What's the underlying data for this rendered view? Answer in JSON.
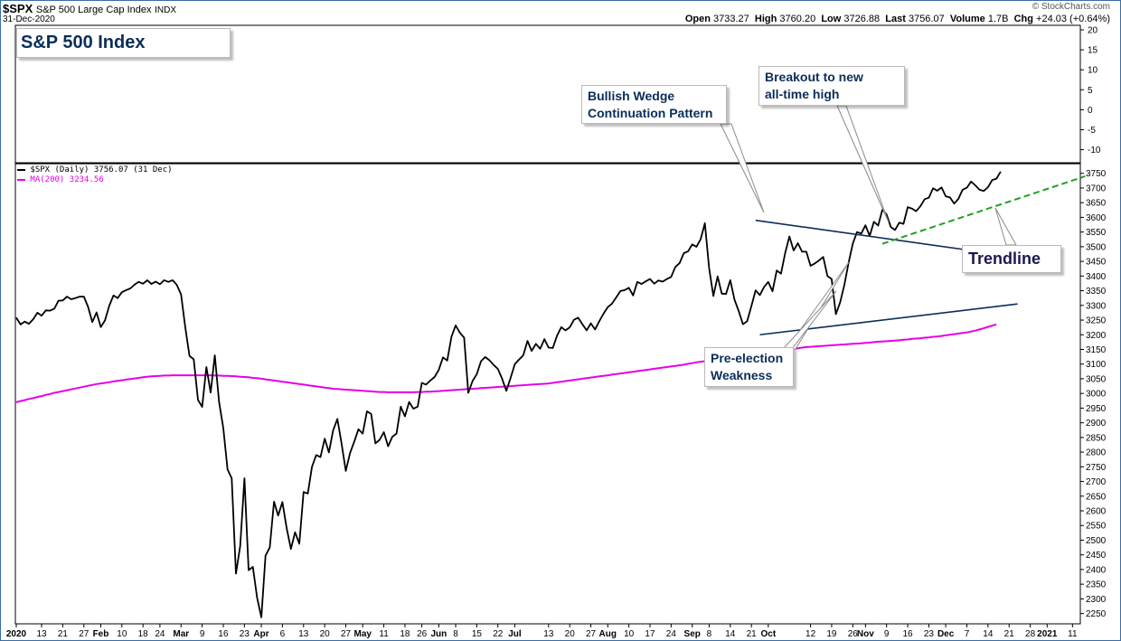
{
  "header": {
    "symbol": "$SPX",
    "name": "S&P 500 Large Cap Index",
    "exchange": "INDX",
    "date": "31-Dec-2020",
    "open_label": "Open",
    "open": "3733.27",
    "high_label": "High",
    "high": "3760.20",
    "low_label": "Low",
    "low": "3726.88",
    "last_label": "Last",
    "last": "3756.07",
    "volume_label": "Volume",
    "volume": "1.7B",
    "chg_label": "Chg",
    "chg": "+24.03 (+0.64%)",
    "credit": "© StockCharts.com"
  },
  "legend": {
    "price": "$SPX (Daily) 3756.07 (31 Dec)",
    "ma": "MA(200) 3234.56"
  },
  "callouts": {
    "title": "S&P 500 Index",
    "wedge_line1": "Bullish Wedge",
    "wedge_line2": "Continuation Pattern",
    "breakout_line1": "Breakout to new",
    "breakout_line2": "all-time high",
    "pre_line1": "Pre-election",
    "pre_line2": "Weakness",
    "trendline": "Trendline"
  },
  "colors": {
    "price": "#000000",
    "ma200": "#e600e6",
    "wedge_lines": "#0b2d5a",
    "trendline": "#22a022",
    "frame": "#3a6ea5",
    "callout_text": "#0b2d5a"
  },
  "chart_data": {
    "type": "line",
    "title": "S&P 500 Index",
    "upper_panel": {
      "y_ticks": [
        20,
        15,
        10,
        5,
        0,
        -5,
        -10
      ]
    },
    "y_ticks": [
      2250,
      2300,
      2350,
      2400,
      2450,
      2500,
      2550,
      2600,
      2650,
      2700,
      2750,
      2800,
      2850,
      2900,
      2950,
      3000,
      3050,
      3100,
      3150,
      3200,
      3250,
      3300,
      3350,
      3400,
      3450,
      3500,
      3550,
      3600,
      3650,
      3700,
      3750
    ],
    "ylim": [
      2218,
      3780
    ],
    "x_labels": [
      "2020",
      "13",
      "21",
      "27",
      "Feb",
      "10",
      "18",
      "24",
      "Mar",
      "9",
      "16",
      "23",
      "Apr",
      "6",
      "13",
      "20",
      "27",
      "May",
      "11",
      "18",
      "26",
      "Jun",
      "8",
      "15",
      "22",
      "Jul",
      "13",
      "20",
      "27",
      "Aug",
      "10",
      "17",
      "24",
      "Sep",
      "8",
      "14",
      "21",
      "Oct",
      "12",
      "19",
      "26",
      "Nov",
      "9",
      "16",
      "23",
      "Dec",
      "7",
      "14",
      "21",
      "28",
      "2021",
      "11"
    ],
    "x_label_idx": [
      0,
      6,
      11,
      16,
      20,
      25,
      30,
      34,
      39,
      44,
      49,
      54,
      58,
      63,
      68,
      73,
      78,
      82,
      87,
      92,
      96,
      100,
      104,
      109,
      114,
      118,
      126,
      131,
      136,
      140,
      145,
      150,
      155,
      160,
      164,
      169,
      174,
      178,
      188,
      193,
      198,
      201,
      206,
      211,
      216,
      220,
      225,
      230,
      235,
      240,
      244,
      250
    ],
    "series": [
      {
        "name": "$SPX (Daily)",
        "values": [
          3258,
          3235,
          3245,
          3237,
          3253,
          3275,
          3265,
          3283,
          3282,
          3289,
          3316,
          3317,
          3330,
          3321,
          3325,
          3330,
          3330,
          3295,
          3243,
          3276,
          3226,
          3249,
          3298,
          3334,
          3325,
          3345,
          3352,
          3358,
          3371,
          3380,
          3374,
          3386,
          3373,
          3381,
          3372,
          3386,
          3380,
          3386,
          3370,
          3337,
          3226,
          3128,
          3116,
          2978,
          2954,
          3090,
          3003,
          3130,
          2972,
          2882,
          2741,
          2711,
          2386,
          2480,
          2711,
          2398,
          2409,
          2304,
          2237,
          2447,
          2475,
          2631,
          2584,
          2630,
          2541,
          2470,
          2527,
          2488,
          2664,
          2659,
          2750,
          2790,
          2783,
          2846,
          2799,
          2874,
          2913,
          2830,
          2736,
          2797,
          2836,
          2878,
          2863,
          2939,
          2930,
          2830,
          2842,
          2868,
          2820,
          2852,
          2863,
          2955,
          2922,
          2971,
          2948,
          2955,
          3036,
          3030,
          3044,
          3056,
          3080,
          3123,
          3112,
          3193,
          3232,
          3207,
          3190,
          3002,
          3042,
          3066,
          3110,
          3124,
          3113,
          3097,
          3083,
          3050,
          3009,
          3053,
          3100,
          3115,
          3130,
          3179,
          3145,
          3169,
          3152,
          3185,
          3156,
          3155,
          3197,
          3226,
          3215,
          3225,
          3251,
          3258,
          3236,
          3215,
          3239,
          3218,
          3246,
          3272,
          3294,
          3306,
          3327,
          3349,
          3352,
          3360,
          3334,
          3380,
          3373,
          3382,
          3390,
          3374,
          3385,
          3381,
          3390,
          3397,
          3431,
          3444,
          3478,
          3484,
          3508,
          3500,
          3526,
          3580,
          3427,
          3332,
          3399,
          3340,
          3339,
          3386,
          3319,
          3281,
          3236,
          3246,
          3298,
          3351,
          3335,
          3363,
          3380,
          3348,
          3419,
          3408,
          3478,
          3535,
          3487,
          3512,
          3483,
          3483,
          3435,
          3443,
          3453,
          3465,
          3400,
          3390,
          3270,
          3310,
          3370,
          3444,
          3510,
          3550,
          3545,
          3573,
          3537,
          3585,
          3572,
          3626,
          3610,
          3567,
          3557,
          3582,
          3578,
          3635,
          3630,
          3621,
          3638,
          3662,
          3667,
          3699,
          3691,
          3702,
          3672,
          3668,
          3647,
          3663,
          3694,
          3701,
          3722,
          3709,
          3694,
          3690,
          3703,
          3727,
          3732,
          3756
        ]
      },
      {
        "name": "MA(200)",
        "values": [
          2970,
          2974,
          2977,
          2981,
          2984,
          2988,
          2991,
          2995,
          2998,
          3002,
          3005,
          3008,
          3011,
          3014,
          3017,
          3020,
          3023,
          3026,
          3029,
          3032,
          3034,
          3036,
          3038,
          3041,
          3043,
          3045,
          3047,
          3049,
          3051,
          3053,
          3055,
          3057,
          3058,
          3059,
          3060,
          3061,
          3061,
          3062,
          3062,
          3062,
          3062,
          3062,
          3062,
          3062,
          3062,
          3062,
          3062,
          3061,
          3061,
          3060,
          3060,
          3059,
          3058,
          3057,
          3056,
          3055,
          3053,
          3052,
          3050,
          3048,
          3046,
          3044,
          3042,
          3040,
          3038,
          3036,
          3034,
          3032,
          3030,
          3028,
          3026,
          3024,
          3022,
          3020,
          3018,
          3016,
          3015,
          3014,
          3013,
          3012,
          3011,
          3010,
          3009,
          3008,
          3007,
          3006,
          3005,
          3005,
          3004,
          3004,
          3004,
          3004,
          3004,
          3004,
          3004,
          3005,
          3005,
          3006,
          3006,
          3007,
          3008,
          3009,
          3010,
          3011,
          3012,
          3013,
          3014,
          3015,
          3016,
          3017,
          3018,
          3019,
          3020,
          3021,
          3022,
          3023,
          3024,
          3025,
          3026,
          3027,
          3028,
          3029,
          3030,
          3031,
          3032,
          3033,
          3034,
          3036,
          3038,
          3040,
          3042,
          3044,
          3046,
          3048,
          3050,
          3052,
          3054,
          3056,
          3058,
          3060,
          3062,
          3064,
          3066,
          3068,
          3070,
          3072,
          3074,
          3076,
          3078,
          3080,
          3082,
          3084,
          3086,
          3088,
          3090,
          3092,
          3094,
          3096,
          3098,
          3101,
          3103,
          3106,
          3108,
          3110,
          3113,
          3115,
          3117,
          3119,
          3121,
          3123,
          3125,
          3127,
          3129,
          3131,
          3133,
          3135,
          3136,
          3138,
          3140,
          3142,
          3144,
          3146,
          3148,
          3150,
          3152,
          3154,
          3156,
          3158,
          3159,
          3160,
          3161,
          3162,
          3163,
          3164,
          3165,
          3166,
          3167,
          3168,
          3169,
          3170,
          3171,
          3172,
          3173,
          3175,
          3176,
          3177,
          3178,
          3179,
          3180,
          3181,
          3183,
          3184,
          3186,
          3187,
          3188,
          3190,
          3191,
          3193,
          3194,
          3196,
          3198,
          3200,
          3202,
          3204,
          3206,
          3208,
          3211,
          3214,
          3218,
          3222,
          3227,
          3231,
          3235
        ]
      }
    ],
    "annotation_lines": [
      {
        "name": "wedge-upper",
        "x_idx": [
          175,
          237
        ],
        "y": [
          3590,
          3465
        ]
      },
      {
        "name": "wedge-lower",
        "x_idx": [
          176,
          237
        ],
        "y": [
          3200,
          3305
        ]
      },
      {
        "name": "trendline",
        "x_idx": [
          205,
          253
        ],
        "y": [
          3510,
          3740
        ]
      }
    ]
  }
}
